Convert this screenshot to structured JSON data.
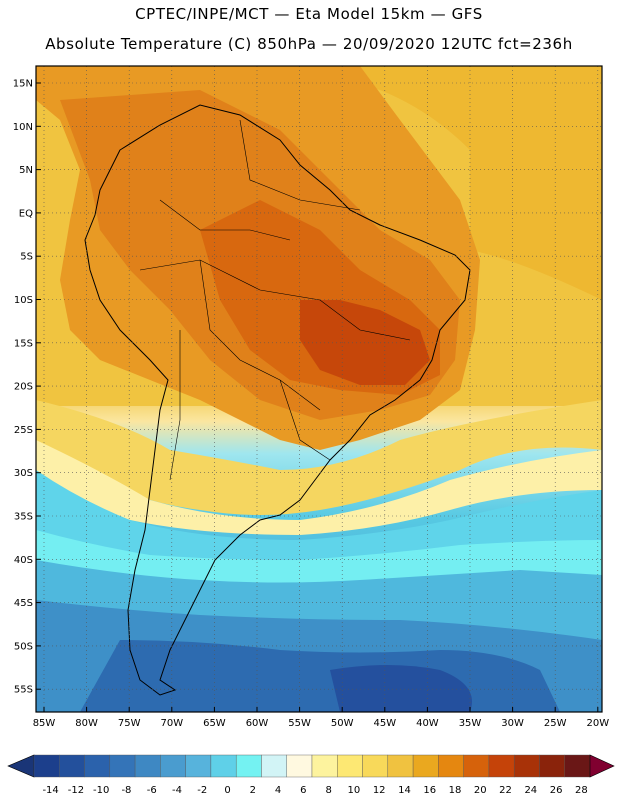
{
  "title": {
    "line1": "CPTEC/INPE/MCT —  Eta Model 15km — GFS",
    "line2": "Absolute Temperature (C) 850hPa — 20/09/2020 12UTC fct=236h"
  },
  "map": {
    "lat_labels": [
      "15N",
      "10N",
      "5N",
      "EQ",
      "5S",
      "10S",
      "15S",
      "20S",
      "25S",
      "30S",
      "35S",
      "40S",
      "45S",
      "50S",
      "55S"
    ],
    "lon_labels": [
      "85W",
      "80W",
      "75W",
      "70W",
      "65W",
      "60W",
      "55W",
      "50W",
      "45W",
      "40W",
      "35W",
      "30W",
      "25W",
      "20W"
    ]
  },
  "colorbar": {
    "labels": [
      "-14",
      "-12",
      "-10",
      "-8",
      "-6",
      "-4",
      "-2",
      "0",
      "2",
      "4",
      "6",
      "8",
      "10",
      "12",
      "14",
      "16",
      "18",
      "20",
      "22",
      "24",
      "26",
      "28"
    ],
    "colors": [
      "#1c3f8c",
      "#23509c",
      "#2b62ac",
      "#3474b8",
      "#3e88c3",
      "#4a9ccf",
      "#57b3dc",
      "#5fd0e8",
      "#74f2f2",
      "#d2f4f6",
      "#fff9e0",
      "#fdf39e",
      "#fde873",
      "#f8d95a",
      "#f0c240",
      "#eaa81f",
      "#e58710",
      "#d6620b",
      "#c54309",
      "#a83208",
      "#8a230b",
      "#6a1716"
    ],
    "under_color": "#1a3577",
    "over_color": "#800030"
  }
}
